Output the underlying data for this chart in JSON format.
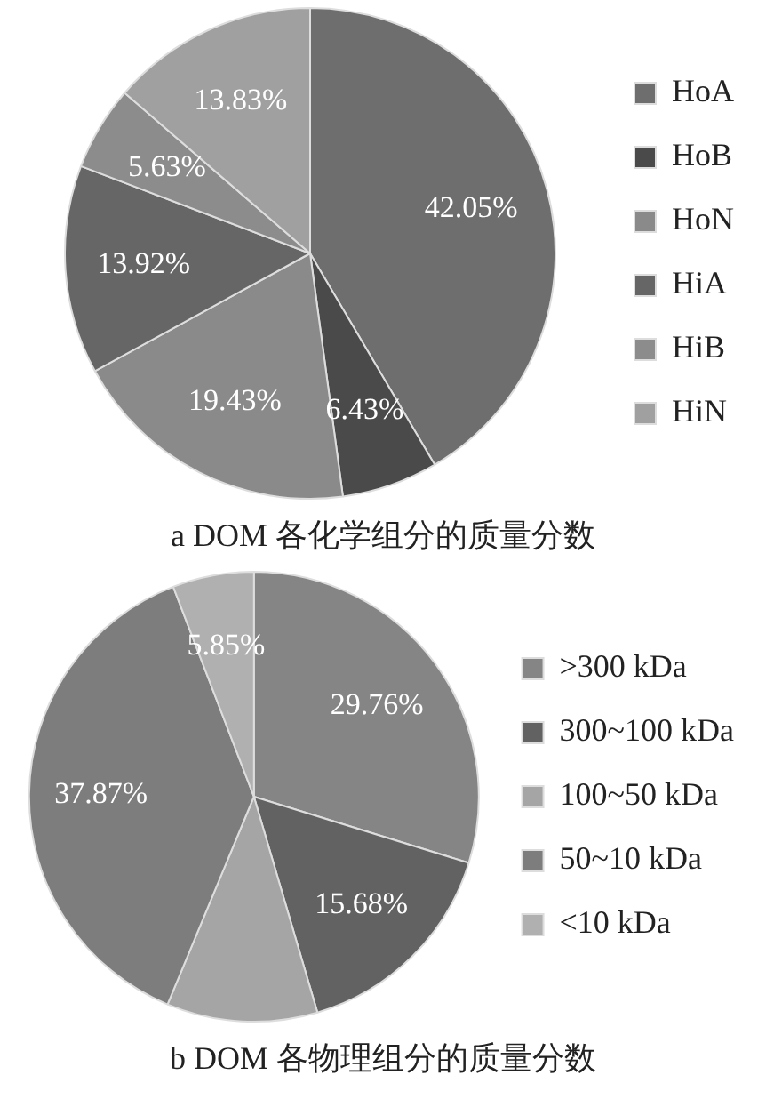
{
  "chart_data": [
    {
      "type": "pie",
      "title": "a DOM 各化学组分的质量分数",
      "categories": [
        "HoA",
        "HoB",
        "HoN",
        "HiA",
        "HiB",
        "HiN"
      ],
      "values": [
        42.05,
        6.43,
        19.43,
        13.92,
        5.63,
        13.83
      ],
      "colors": [
        "#6e6e6e",
        "#4a4a4a",
        "#8a8a8a",
        "#666666",
        "#8c8c8c",
        "#a0a0a0"
      ],
      "value_labels": [
        "42.05%",
        "6.43%",
        "19.43%",
        "13.92%",
        "5.63%",
        "13.83%"
      ],
      "legend": "right"
    },
    {
      "type": "pie",
      "title": "b DOM 各物理组分的质量分数",
      "categories": [
        ">300 kDa",
        "300~100 kDa",
        "100~50 kDa",
        "50~10 kDa",
        "<10 kDa"
      ],
      "values": [
        29.76,
        15.68,
        10.84,
        37.87,
        5.85
      ],
      "colors": [
        "#858585",
        "#626262",
        "#a5a5a5",
        "#7d7d7d",
        "#b0b0b0"
      ],
      "value_labels": [
        "29.76%",
        "15.68%",
        null,
        "37.87%",
        "5.85%"
      ],
      "legend": "right"
    }
  ]
}
